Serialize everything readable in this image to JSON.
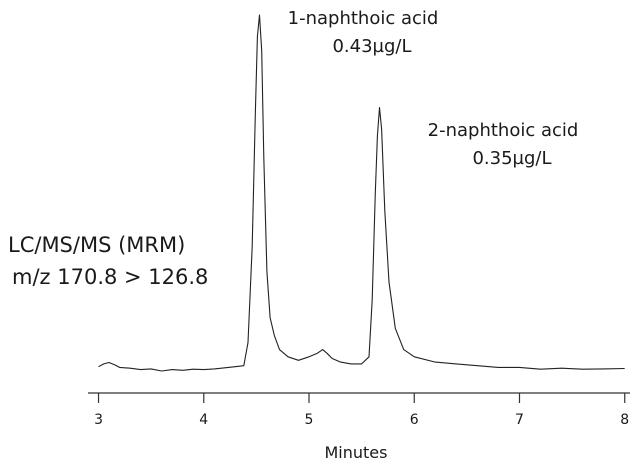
{
  "chart_data": {
    "type": "line",
    "title": "",
    "xlabel": "Minutes",
    "ylabel": "",
    "xlim": [
      2.9,
      8.05
    ],
    "ylim": [
      0,
      100
    ],
    "x_ticks": [
      "3",
      "4",
      "5",
      "6",
      "7",
      "8"
    ],
    "grid": false,
    "legend": "none",
    "method_label": [
      "LC/MS/MS (MRM)",
      "m/z 170.8 > 126.8"
    ],
    "peaks": [
      {
        "name": "1-naphthoic acid",
        "concentration": "0.43µg/L",
        "retention_time": 4.53,
        "height": 100
      },
      {
        "name": "2-naphthoic acid",
        "concentration": "0.35µg/L",
        "retention_time": 5.67,
        "height": 74
      }
    ],
    "series": [
      {
        "x": [
          3.0,
          3.05,
          3.1,
          3.15,
          3.2,
          3.3,
          3.4,
          3.5,
          3.6,
          3.7,
          3.8,
          3.9,
          4.0,
          4.1,
          4.2,
          4.3,
          4.38,
          4.42,
          4.46,
          4.49,
          4.51,
          4.53,
          4.55,
          4.57,
          4.6,
          4.63,
          4.67,
          4.72,
          4.8,
          4.9,
          5.0,
          5.08,
          5.13,
          5.17,
          5.22,
          5.3,
          5.4,
          5.5,
          5.57,
          5.6,
          5.63,
          5.65,
          5.67,
          5.69,
          5.72,
          5.76,
          5.82,
          5.9,
          6.0,
          6.2,
          6.4,
          6.6,
          6.8,
          7.0,
          7.2,
          7.4,
          7.6,
          7.8,
          8.0
        ],
        "values": [
          1.2,
          2.0,
          2.4,
          1.8,
          1.0,
          0.8,
          0.4,
          0.6,
          0.0,
          0.4,
          0.2,
          0.5,
          0.4,
          0.6,
          0.9,
          1.2,
          1.5,
          8,
          35,
          72,
          94,
          100,
          90,
          60,
          28,
          15,
          10,
          6,
          4,
          3,
          4,
          5,
          6,
          5,
          3.5,
          2.5,
          2.0,
          2.0,
          4,
          20,
          50,
          66,
          74,
          68,
          45,
          25,
          12,
          6,
          4,
          2.5,
          2.0,
          1.5,
          1.0,
          1.0,
          0.5,
          0.8,
          0.5,
          0.6,
          0.7
        ]
      }
    ]
  }
}
